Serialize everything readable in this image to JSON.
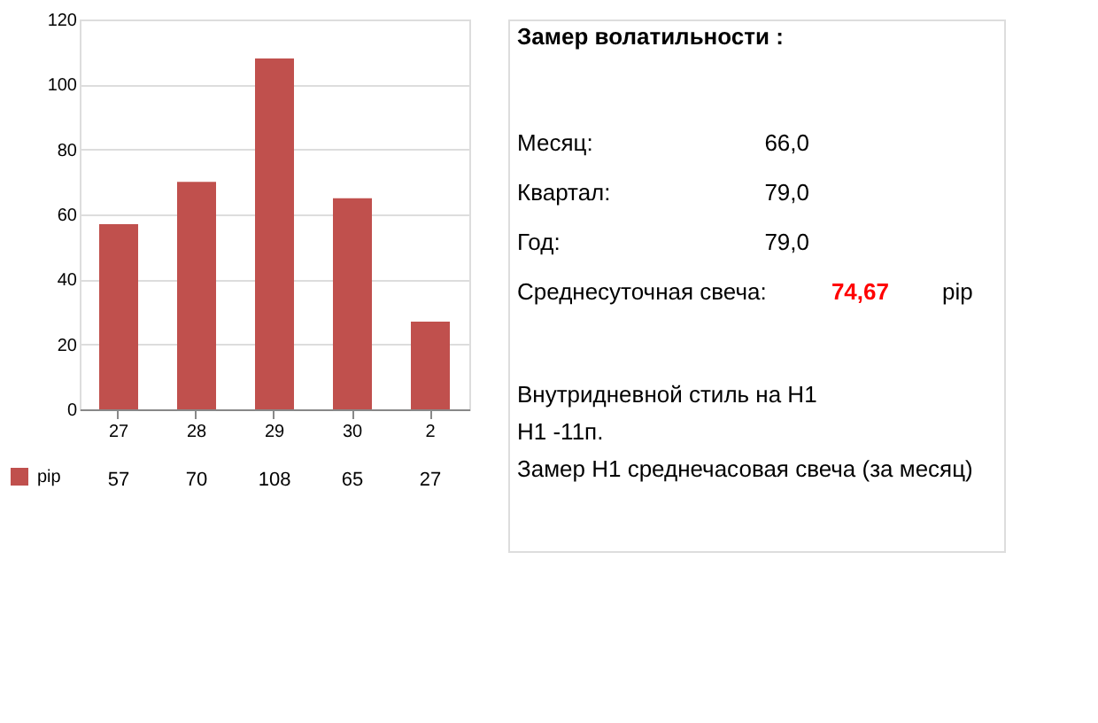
{
  "chart_data": [
    {
      "type": "bar",
      "categories": [
        "27",
        "28",
        "29",
        "30",
        "2"
      ],
      "series": [
        {
          "name": "pip",
          "color": "#c0504d",
          "values": [
            57,
            70,
            108,
            65,
            27
          ]
        }
      ],
      "ylim": [
        0,
        120
      ],
      "yticks": [
        0,
        20,
        40,
        60,
        80,
        100,
        120
      ],
      "grid": "y",
      "data_labels": true,
      "legend": "bottom left"
    },
    {
      "type": "other",
      "annotations": [
        "Замер  волатильности  :",
        "Месяц:",
        "66,0",
        "Квартал:",
        "79,0",
        "Год:",
        "79,0",
        "Среднесуточная свеча:",
        "74,67",
        "pip",
        "Внутридневной стиль на H1",
        "H1 -11п.",
        "Замер H1 среднечасовая свеча (за месяц)"
      ]
    }
  ]
}
